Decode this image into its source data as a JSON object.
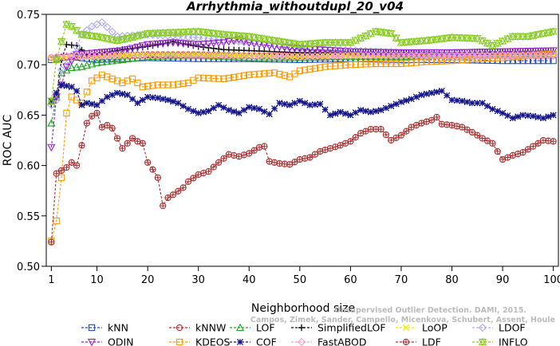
{
  "chart_data": {
    "type": "line",
    "title": "Arrhythmia_withoutdupl_20_v04",
    "xlabel": "Neighborhood size",
    "ylabel": "ROC AUC",
    "xlim": [
      0,
      101
    ],
    "ylim": [
      0.5,
      0.75
    ],
    "x_ticks": [
      1,
      10,
      20,
      30,
      40,
      50,
      60,
      70,
      80,
      90,
      100
    ],
    "y_ticks": [
      0.5,
      0.55,
      0.6,
      0.65,
      0.7,
      0.75
    ],
    "x_tick_labels": [
      "1",
      "10",
      "20",
      "30",
      "40",
      "50",
      "60",
      "70",
      "80",
      "90",
      "100"
    ],
    "y_tick_labels": [
      "0.50",
      "0.55",
      "0.60",
      "0.65",
      "0.70",
      "0.75"
    ],
    "grid": false,
    "legend_position": "bottom",
    "watermark_lines": [
      "Unsupervised Outlier Detection. DAMI, 2015.",
      "Campos, Zimek, Sander, Campello, Micenkova, Schubert, Assent, Houle"
    ],
    "series": [
      {
        "name": "kNN",
        "color": "#1f4fc8",
        "marker": "square",
        "points": [
          [
            1,
            0.705
          ],
          [
            3,
            0.707
          ],
          [
            5,
            0.708
          ],
          [
            10,
            0.705
          ],
          [
            20,
            0.707
          ],
          [
            30,
            0.706
          ],
          [
            40,
            0.706
          ],
          [
            50,
            0.705
          ],
          [
            60,
            0.706
          ],
          [
            70,
            0.705
          ],
          [
            80,
            0.705
          ],
          [
            90,
            0.704
          ],
          [
            100,
            0.704
          ]
        ]
      },
      {
        "name": "kNNW",
        "color": "#cc2222",
        "marker": "circle",
        "points": [
          [
            1,
            0.707
          ],
          [
            5,
            0.708
          ],
          [
            10,
            0.709
          ],
          [
            20,
            0.71
          ],
          [
            30,
            0.71
          ],
          [
            40,
            0.709
          ],
          [
            50,
            0.709
          ],
          [
            60,
            0.709
          ],
          [
            70,
            0.709
          ],
          [
            80,
            0.709
          ],
          [
            90,
            0.709
          ],
          [
            100,
            0.709
          ]
        ]
      },
      {
        "name": "LOF",
        "color": "#22aa22",
        "marker": "triangle-up",
        "points": [
          [
            1,
            0.642
          ],
          [
            2,
            0.668
          ],
          [
            3,
            0.692
          ],
          [
            5,
            0.697
          ],
          [
            7,
            0.698
          ],
          [
            10,
            0.702
          ],
          [
            15,
            0.705
          ],
          [
            20,
            0.708
          ],
          [
            30,
            0.709
          ],
          [
            40,
            0.707
          ],
          [
            50,
            0.707
          ],
          [
            60,
            0.708
          ],
          [
            70,
            0.708
          ],
          [
            80,
            0.71
          ],
          [
            90,
            0.711
          ],
          [
            100,
            0.711
          ]
        ]
      },
      {
        "name": "SimplifiedLOF",
        "color": "#111111",
        "marker": "plus",
        "points": [
          [
            1,
            0.661
          ],
          [
            2,
            0.668
          ],
          [
            3,
            0.705
          ],
          [
            4,
            0.72
          ],
          [
            6,
            0.719
          ],
          [
            8,
            0.71
          ],
          [
            10,
            0.711
          ],
          [
            15,
            0.715
          ],
          [
            20,
            0.718
          ],
          [
            25,
            0.723
          ],
          [
            30,
            0.718
          ],
          [
            35,
            0.715
          ],
          [
            40,
            0.714
          ],
          [
            50,
            0.712
          ],
          [
            60,
            0.712
          ],
          [
            70,
            0.712
          ],
          [
            80,
            0.712
          ],
          [
            90,
            0.713
          ],
          [
            100,
            0.713
          ]
        ]
      },
      {
        "name": "LoOP",
        "color": "#eeee00",
        "marker": "x",
        "points": [
          [
            1,
            0.706
          ],
          [
            5,
            0.708
          ],
          [
            10,
            0.708
          ],
          [
            20,
            0.71
          ],
          [
            30,
            0.71
          ],
          [
            40,
            0.709
          ],
          [
            50,
            0.708
          ],
          [
            60,
            0.709
          ],
          [
            70,
            0.71
          ],
          [
            80,
            0.71
          ],
          [
            90,
            0.712
          ],
          [
            100,
            0.711
          ]
        ]
      },
      {
        "name": "LDOF",
        "color": "#aaaaee",
        "marker": "diamond",
        "points": [
          [
            1,
            0.66
          ],
          [
            2,
            0.665
          ],
          [
            3,
            0.695
          ],
          [
            5,
            0.705
          ],
          [
            7,
            0.73
          ],
          [
            9,
            0.738
          ],
          [
            11,
            0.742
          ],
          [
            14,
            0.728
          ],
          [
            20,
            0.73
          ],
          [
            30,
            0.727
          ],
          [
            40,
            0.722
          ],
          [
            50,
            0.716
          ],
          [
            60,
            0.714
          ],
          [
            70,
            0.712
          ],
          [
            80,
            0.71
          ],
          [
            90,
            0.71
          ],
          [
            100,
            0.71
          ]
        ]
      },
      {
        "name": "ODIN",
        "color": "#9922cc",
        "marker": "triangle-down",
        "points": [
          [
            1,
            0.618
          ],
          [
            2,
            0.668
          ],
          [
            3,
            0.68
          ],
          [
            4,
            0.698
          ],
          [
            6,
            0.71
          ],
          [
            10,
            0.712
          ],
          [
            15,
            0.714
          ],
          [
            20,
            0.72
          ],
          [
            25,
            0.722
          ],
          [
            30,
            0.72
          ],
          [
            35,
            0.722
          ],
          [
            38,
            0.725
          ],
          [
            40,
            0.722
          ],
          [
            45,
            0.718
          ],
          [
            50,
            0.716
          ],
          [
            60,
            0.713
          ],
          [
            70,
            0.712
          ],
          [
            80,
            0.712
          ],
          [
            90,
            0.713
          ],
          [
            100,
            0.714
          ]
        ]
      },
      {
        "name": "KDEOS",
        "color": "#ff9900",
        "marker": "square",
        "points": [
          [
            1,
            0.525
          ],
          [
            2,
            0.545
          ],
          [
            3,
            0.588
          ],
          [
            4,
            0.652
          ],
          [
            5,
            0.668
          ],
          [
            7,
            0.662
          ],
          [
            9,
            0.684
          ],
          [
            11,
            0.69
          ],
          [
            13,
            0.686
          ],
          [
            15,
            0.682
          ],
          [
            17,
            0.686
          ],
          [
            19,
            0.678
          ],
          [
            22,
            0.68
          ],
          [
            25,
            0.68
          ],
          [
            28,
            0.682
          ],
          [
            30,
            0.687
          ],
          [
            35,
            0.686
          ],
          [
            40,
            0.69
          ],
          [
            45,
            0.692
          ],
          [
            48,
            0.688
          ],
          [
            50,
            0.694
          ],
          [
            55,
            0.698
          ],
          [
            60,
            0.7
          ],
          [
            65,
            0.701
          ],
          [
            70,
            0.701
          ],
          [
            75,
            0.703
          ],
          [
            80,
            0.704
          ],
          [
            85,
            0.706
          ],
          [
            90,
            0.707
          ],
          [
            95,
            0.709
          ],
          [
            100,
            0.711
          ]
        ]
      },
      {
        "name": "COF",
        "color": "#14148a",
        "marker": "asterisk",
        "points": [
          [
            1,
            0.664
          ],
          [
            3,
            0.68
          ],
          [
            5,
            0.678
          ],
          [
            6,
            0.674
          ],
          [
            7,
            0.66
          ],
          [
            8,
            0.662
          ],
          [
            10,
            0.66
          ],
          [
            12,
            0.668
          ],
          [
            14,
            0.672
          ],
          [
            16,
            0.67
          ],
          [
            18,
            0.662
          ],
          [
            20,
            0.668
          ],
          [
            22,
            0.667
          ],
          [
            24,
            0.665
          ],
          [
            26,
            0.662
          ],
          [
            28,
            0.656
          ],
          [
            30,
            0.652
          ],
          [
            32,
            0.654
          ],
          [
            34,
            0.66
          ],
          [
            36,
            0.655
          ],
          [
            38,
            0.652
          ],
          [
            40,
            0.658
          ],
          [
            42,
            0.656
          ],
          [
            44,
            0.651
          ],
          [
            46,
            0.662
          ],
          [
            48,
            0.66
          ],
          [
            50,
            0.664
          ],
          [
            52,
            0.66
          ],
          [
            54,
            0.661
          ],
          [
            56,
            0.65
          ],
          [
            58,
            0.653
          ],
          [
            60,
            0.65
          ],
          [
            62,
            0.655
          ],
          [
            64,
            0.653
          ],
          [
            66,
            0.655
          ],
          [
            68,
            0.659
          ],
          [
            70,
            0.663
          ],
          [
            72,
            0.666
          ],
          [
            74,
            0.67
          ],
          [
            76,
            0.672
          ],
          [
            78,
            0.674
          ],
          [
            80,
            0.665
          ],
          [
            82,
            0.664
          ],
          [
            84,
            0.662
          ],
          [
            86,
            0.662
          ],
          [
            88,
            0.656
          ],
          [
            90,
            0.652
          ],
          [
            92,
            0.647
          ],
          [
            94,
            0.65
          ],
          [
            96,
            0.649
          ],
          [
            98,
            0.647
          ],
          [
            100,
            0.65
          ]
        ]
      },
      {
        "name": "FastABOD",
        "color": "#ff99cc",
        "marker": "diamond",
        "points": [
          [
            1,
            0.707
          ],
          [
            5,
            0.709
          ],
          [
            10,
            0.709
          ],
          [
            20,
            0.709
          ],
          [
            30,
            0.709
          ],
          [
            40,
            0.709
          ],
          [
            50,
            0.708
          ],
          [
            60,
            0.709
          ],
          [
            70,
            0.709
          ],
          [
            80,
            0.709
          ],
          [
            90,
            0.709
          ],
          [
            100,
            0.709
          ]
        ]
      },
      {
        "name": "LDF",
        "color": "#aa3333",
        "marker": "circle-cross",
        "points": [
          [
            1,
            0.524
          ],
          [
            2,
            0.592
          ],
          [
            3,
            0.595
          ],
          [
            4,
            0.598
          ],
          [
            5,
            0.603
          ],
          [
            6,
            0.6
          ],
          [
            7,
            0.62
          ],
          [
            8,
            0.642
          ],
          [
            9,
            0.649
          ],
          [
            10,
            0.652
          ],
          [
            11,
            0.638
          ],
          [
            12,
            0.64
          ],
          [
            13,
            0.637
          ],
          [
            15,
            0.617
          ],
          [
            17,
            0.627
          ],
          [
            18,
            0.624
          ],
          [
            19,
            0.622
          ],
          [
            20,
            0.603
          ],
          [
            21,
            0.596
          ],
          [
            22,
            0.588
          ],
          [
            23,
            0.56
          ],
          [
            24,
            0.568
          ],
          [
            25,
            0.571
          ],
          [
            27,
            0.578
          ],
          [
            28,
            0.584
          ],
          [
            30,
            0.591
          ],
          [
            32,
            0.594
          ],
          [
            34,
            0.603
          ],
          [
            36,
            0.611
          ],
          [
            38,
            0.609
          ],
          [
            40,
            0.612
          ],
          [
            42,
            0.618
          ],
          [
            43,
            0.619
          ],
          [
            44,
            0.604
          ],
          [
            46,
            0.602
          ],
          [
            48,
            0.601
          ],
          [
            50,
            0.606
          ],
          [
            52,
            0.608
          ],
          [
            54,
            0.614
          ],
          [
            56,
            0.617
          ],
          [
            58,
            0.62
          ],
          [
            60,
            0.624
          ],
          [
            62,
            0.632
          ],
          [
            64,
            0.636
          ],
          [
            66,
            0.636
          ],
          [
            68,
            0.625
          ],
          [
            70,
            0.63
          ],
          [
            72,
            0.638
          ],
          [
            74,
            0.642
          ],
          [
            76,
            0.645
          ],
          [
            77,
            0.648
          ],
          [
            78,
            0.641
          ],
          [
            80,
            0.64
          ],
          [
            82,
            0.638
          ],
          [
            84,
            0.633
          ],
          [
            86,
            0.627
          ],
          [
            88,
            0.622
          ],
          [
            90,
            0.606
          ],
          [
            92,
            0.61
          ],
          [
            94,
            0.613
          ],
          [
            96,
            0.619
          ],
          [
            98,
            0.625
          ],
          [
            100,
            0.624
          ]
        ]
      },
      {
        "name": "INFLO",
        "color": "#88cc22",
        "marker": "hourglass",
        "points": [
          [
            1,
            0.664
          ],
          [
            2,
            0.705
          ],
          [
            3,
            0.723
          ],
          [
            4,
            0.74
          ],
          [
            5,
            0.738
          ],
          [
            7,
            0.73
          ],
          [
            10,
            0.728
          ],
          [
            12,
            0.726
          ],
          [
            14,
            0.724
          ],
          [
            16,
            0.726
          ],
          [
            20,
            0.731
          ],
          [
            25,
            0.732
          ],
          [
            30,
            0.733
          ],
          [
            35,
            0.73
          ],
          [
            40,
            0.728
          ],
          [
            45,
            0.724
          ],
          [
            50,
            0.72
          ],
          [
            55,
            0.722
          ],
          [
            60,
            0.722
          ],
          [
            65,
            0.733
          ],
          [
            68,
            0.731
          ],
          [
            70,
            0.722
          ],
          [
            75,
            0.724
          ],
          [
            80,
            0.727
          ],
          [
            85,
            0.726
          ],
          [
            88,
            0.719
          ],
          [
            92,
            0.728
          ],
          [
            95,
            0.728
          ],
          [
            100,
            0.733
          ]
        ]
      }
    ]
  }
}
